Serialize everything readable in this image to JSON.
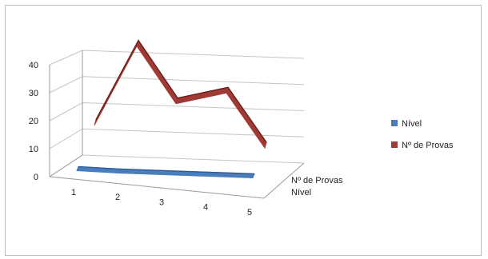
{
  "chart_data": {
    "type": "line",
    "style": "3d-line",
    "categories": [
      "1",
      "2",
      "3",
      "4",
      "5"
    ],
    "series": [
      {
        "name": "Nível",
        "values": [
          0,
          0,
          0,
          0,
          0
        ],
        "color": "#4a7ebb"
      },
      {
        "name": "Nº de Provas",
        "values": [
          10,
          41,
          20,
          25,
          5
        ],
        "color": "#a03a35"
      }
    ],
    "ylim": [
      0,
      40
    ],
    "yticks": [
      "0",
      "10",
      "20",
      "30",
      "40"
    ],
    "depth_labels": [
      "Nº de Provas",
      "Nível"
    ],
    "grid": true,
    "legend": "right"
  }
}
